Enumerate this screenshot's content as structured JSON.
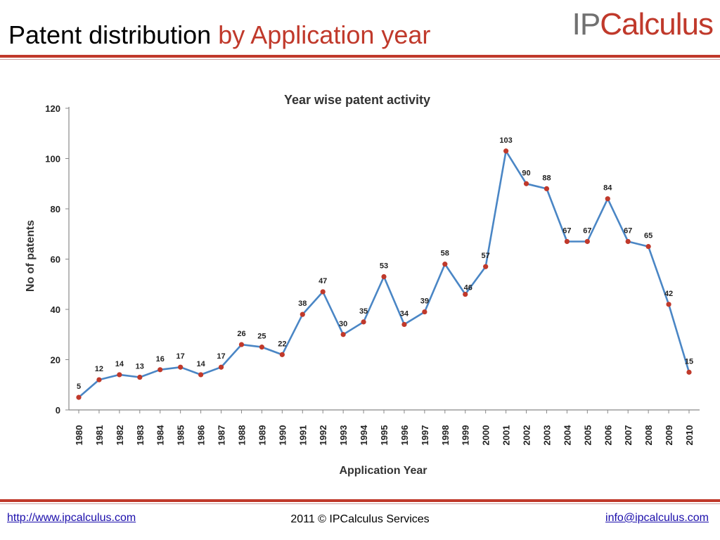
{
  "header": {
    "title_main": "Patent distribution",
    "title_accent": "by Application year",
    "logo_ip": "IP",
    "logo_rest": "Calculus"
  },
  "footer": {
    "left_link": "http://www.ipcalculus.com",
    "center_text": "2011 © IPCalculus Services",
    "right_link": "info@ipcalculus.com"
  },
  "colors": {
    "accent": "#c0392b",
    "line": "#4a86c5",
    "marker": "#c0392b"
  },
  "chart_data": {
    "type": "line",
    "title": "Year wise patent activity",
    "xlabel": "Application Year",
    "ylabel": "No of patents",
    "ylim": [
      0,
      120
    ],
    "yticks": [
      0,
      20,
      40,
      60,
      80,
      100,
      120
    ],
    "grid": false,
    "x": [
      "1980",
      "1981",
      "1982",
      "1983",
      "1984",
      "1985",
      "1986",
      "1987",
      "1988",
      "1989",
      "1990",
      "1991",
      "1992",
      "1993",
      "1994",
      "1995",
      "1996",
      "1997",
      "1998",
      "1999",
      "2000",
      "2001",
      "2002",
      "2003",
      "2004",
      "2005",
      "2006",
      "2007",
      "2008",
      "2009",
      "2010"
    ],
    "values": [
      5,
      12,
      14,
      13,
      16,
      17,
      14,
      17,
      26,
      25,
      22,
      38,
      47,
      30,
      35,
      53,
      34,
      39,
      58,
      46,
      57,
      103,
      90,
      88,
      67,
      67,
      84,
      67,
      65,
      42,
      15
    ]
  }
}
